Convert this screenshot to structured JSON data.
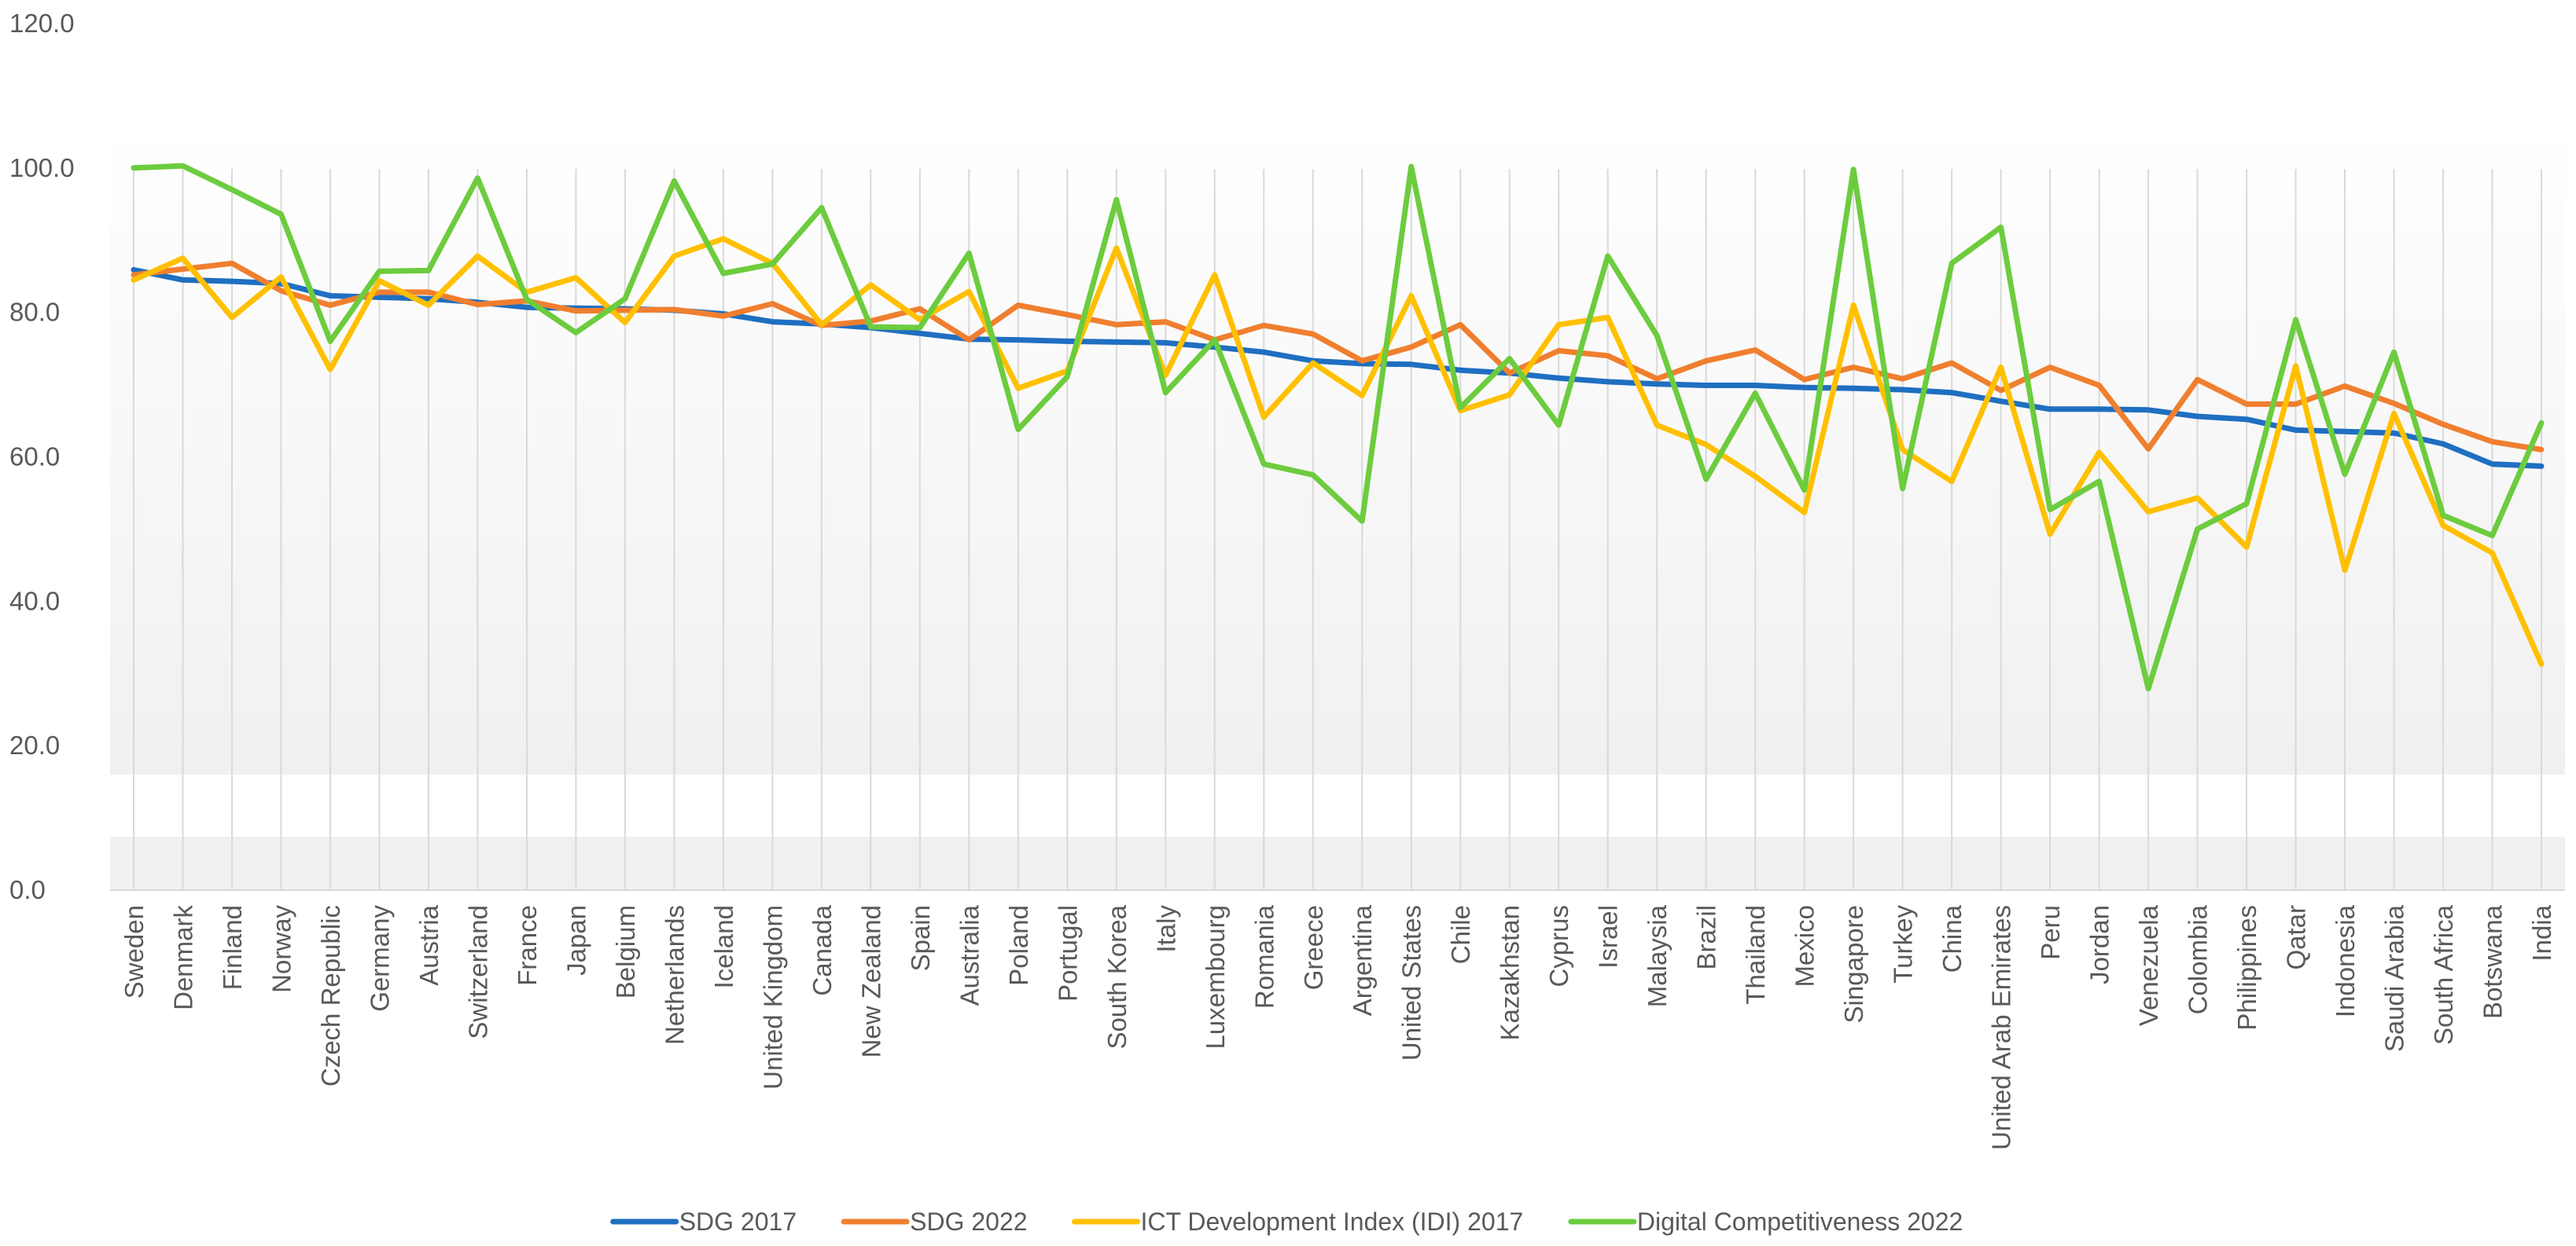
{
  "chart_data": {
    "type": "line",
    "title": "",
    "xlabel": "",
    "ylabel": "",
    "ylim": [
      0,
      120
    ],
    "yticks": [
      0,
      20,
      40,
      60,
      80,
      100,
      120
    ],
    "ytick_labels": [
      "0.0",
      "20.0",
      "40.0",
      "60.0",
      "80.0",
      "100.0",
      "120.0"
    ],
    "legend_position": "bottom",
    "categories": [
      "Sweden",
      "Denmark",
      "Finland",
      "Norway",
      "Czech Republic",
      "Germany",
      "Austria",
      "Switzerland",
      "France",
      "Japan",
      "Belgium",
      "Netherlands",
      "Iceland",
      "United Kingdom",
      "Canada",
      "New Zealand",
      "Spain",
      "Australia",
      "Poland",
      "Portugal",
      "South Korea",
      "Italy",
      "Luxembourg",
      "Romania",
      "Greece",
      "Argentina",
      "United States",
      "Chile",
      "Kazakhstan",
      "Cyprus",
      "Israel",
      "Malaysia",
      "Brazil",
      "Thailand",
      "Mexico",
      "Singapore",
      "Turkey",
      "China",
      "United Arab Emirates",
      "Peru",
      "Jordan",
      "Venezuela",
      "Colombia",
      "Philippines",
      "Qatar",
      "Indonesia",
      "Saudi Arabia",
      "South Africa",
      "Botswana",
      "India"
    ],
    "series": [
      {
        "name": "SDG 2017",
        "color": "#1f6fc1",
        "values": [
          85.9,
          84.5,
          84.3,
          84.0,
          82.3,
          82.1,
          81.9,
          81.4,
          80.7,
          80.6,
          80.5,
          80.3,
          79.8,
          78.7,
          78.4,
          77.9,
          77.1,
          76.3,
          76.2,
          76.0,
          75.9,
          75.8,
          75.2,
          74.5,
          73.3,
          72.9,
          72.8,
          72.0,
          71.6,
          70.9,
          70.4,
          70.1,
          69.9,
          69.9,
          69.6,
          69.5,
          69.3,
          68.9,
          67.7,
          66.6,
          66.6,
          66.5,
          65.6,
          65.2,
          63.7,
          63.5,
          63.3,
          61.8,
          59.0,
          58.7
        ]
      },
      {
        "name": "SDG 2022",
        "color": "#f07f2f",
        "values": [
          85.2,
          86.0,
          86.8,
          83.0,
          81.0,
          82.8,
          82.8,
          81.1,
          81.6,
          80.2,
          80.3,
          80.4,
          79.5,
          81.2,
          78.2,
          78.8,
          80.5,
          76.2,
          81.0,
          79.7,
          78.3,
          78.7,
          76.2,
          78.2,
          77.0,
          73.3,
          75.2,
          78.3,
          71.6,
          74.7,
          74.0,
          70.8,
          73.3,
          74.8,
          70.7,
          72.4,
          70.8,
          73.0,
          69.2,
          72.4,
          69.9,
          61.1,
          70.7,
          67.3,
          67.3,
          69.8,
          67.4,
          64.5,
          62.1,
          61.0
        ]
      },
      {
        "name": "ICT Development Index (IDI) 2017",
        "color": "#ffc000",
        "values": [
          84.5,
          87.5,
          79.3,
          84.9,
          72.1,
          84.4,
          81.0,
          87.8,
          82.8,
          84.8,
          78.6,
          87.8,
          90.2,
          86.8,
          78.3,
          83.8,
          79.0,
          82.9,
          69.5,
          71.9,
          88.9,
          71.3,
          85.2,
          65.5,
          73.0,
          68.5,
          82.3,
          66.4,
          68.6,
          78.3,
          79.3,
          64.4,
          61.7,
          57.3,
          52.3,
          81.0,
          61.0,
          56.6,
          72.4,
          49.3,
          60.6,
          52.4,
          54.3,
          47.5,
          72.6,
          44.3,
          66.0,
          50.5,
          46.7,
          31.3
        ]
      },
      {
        "name": "Digital Competitiveness 2022",
        "color": "#6ccc3e",
        "values": [
          100.0,
          100.3,
          97.0,
          93.6,
          76.0,
          85.7,
          85.8,
          98.6,
          81.8,
          77.2,
          81.9,
          98.2,
          85.4,
          86.7,
          94.5,
          78.0,
          77.9,
          88.2,
          63.8,
          71.1,
          95.6,
          68.9,
          76.2,
          59.0,
          57.5,
          51.1,
          100.2,
          66.8,
          73.6,
          64.4,
          87.8,
          76.8,
          56.9,
          68.8,
          55.4,
          99.8,
          55.6,
          86.8,
          91.8,
          52.7,
          56.6,
          27.9,
          50.0,
          53.5,
          79.0,
          57.6,
          74.5,
          51.9,
          49.1,
          64.7
        ]
      }
    ]
  }
}
